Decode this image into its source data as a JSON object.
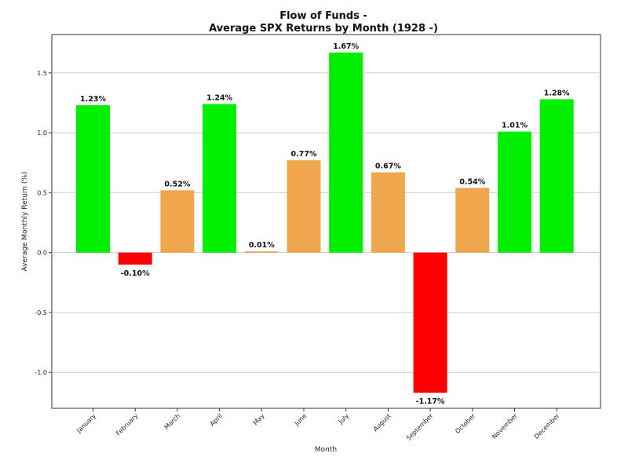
{
  "chart_data": {
    "type": "bar",
    "title": "Flow of Funds -",
    "subtitle": "Average SPX Returns by Month (1928 -)",
    "xlabel": "Month",
    "ylabel": "Average Monthly Return (%)",
    "ylim": [
      -1.3,
      1.82
    ],
    "yticks": [
      "-1.0",
      "-0.5",
      "0.0",
      "0.5",
      "1.0",
      "1.5"
    ],
    "ytick_values": [
      -1.0,
      -0.5,
      0.0,
      0.5,
      1.0,
      1.5
    ],
    "grid": true,
    "categories": [
      "January",
      "February",
      "March",
      "April",
      "May",
      "June",
      "July",
      "August",
      "September",
      "October",
      "November",
      "December"
    ],
    "values": [
      1.23,
      -0.1,
      0.52,
      1.24,
      0.01,
      0.77,
      1.67,
      0.67,
      -1.17,
      0.54,
      1.01,
      1.28
    ],
    "labels": [
      "1.23%",
      "-0.10%",
      "0.52%",
      "1.24%",
      "0.01%",
      "0.77%",
      "1.67%",
      "0.67%",
      "-1.17%",
      "0.54%",
      "1.01%",
      "1.28%"
    ],
    "colors": {
      "strong": "#00ee00",
      "moderate": "#f0a64a",
      "negative": "#ff0000",
      "grid": "#cccccc",
      "axis": "#333333"
    },
    "color_rule": "negative < 0 <= moderate < 1.0 <= strong"
  }
}
